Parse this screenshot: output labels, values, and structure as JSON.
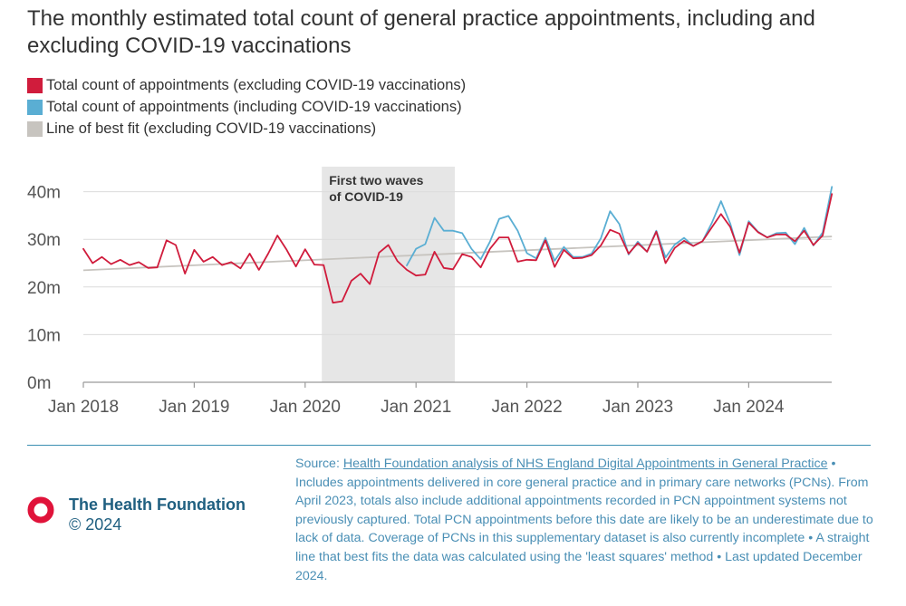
{
  "title": "The monthly estimated total count of general practice appointments, including and excluding COVID-19 vaccinations",
  "legend": [
    {
      "label": "Total count of appointments (excluding COVID-19 vaccinations)",
      "color": "#d01c3c"
    },
    {
      "label": "Total count of appointments (including COVID-19 vaccinations)",
      "color": "#5aaed3"
    },
    {
      "label": "Line of best fit (excluding COVID-19 vaccinations)",
      "color": "#c7c4bf"
    }
  ],
  "chart_data": {
    "type": "line",
    "title": "The monthly estimated total count of general practice appointments, including and excluding COVID-19 vaccinations",
    "xlabel": "",
    "ylabel": "",
    "x_start": "2018-01",
    "x_tick_labels": [
      "Jan 2018",
      "Jan 2019",
      "Jan 2020",
      "Jan 2021",
      "Jan 2022",
      "Jan 2023",
      "Jan 2024"
    ],
    "y_tick_values": [
      0,
      10,
      20,
      30,
      40
    ],
    "y_tick_labels": [
      "0m",
      "10m",
      "20m",
      "30m",
      "40m"
    ],
    "ylim": [
      0,
      42
    ],
    "annotation": {
      "label_line1": "First two waves",
      "label_line2": "of COVID-19",
      "start_month_index": 26,
      "end_month_index": 40,
      "color": "#e6e6e6"
    },
    "series": [
      {
        "name": "Total count of appointments (excluding COVID-19 vaccinations)",
        "color": "#d01c3c",
        "start_index": 0,
        "values": [
          28.0,
          25.0,
          26.3,
          24.8,
          25.7,
          24.6,
          25.2,
          24.0,
          24.1,
          29.8,
          28.8,
          22.8,
          27.8,
          25.3,
          26.3,
          24.6,
          25.2,
          23.9,
          27.0,
          23.6,
          27.0,
          30.8,
          27.8,
          24.3,
          27.9,
          24.7,
          24.6,
          16.7,
          17.0,
          21.3,
          22.8,
          20.6,
          27.2,
          28.8,
          25.4,
          23.6,
          22.4,
          22.6,
          27.4,
          24.0,
          23.7,
          26.9,
          26.3,
          24.1,
          28.0,
          30.4,
          30.4,
          25.3,
          25.7,
          25.6,
          29.8,
          24.2,
          27.8,
          26.0,
          26.1,
          26.7,
          28.7,
          32.0,
          31.2,
          27.0,
          29.2,
          27.4,
          31.6,
          25.0,
          28.2,
          29.7,
          28.6,
          29.6,
          32.5,
          35.3,
          32.6,
          27.2,
          33.5,
          31.5,
          30.4,
          31.0,
          31.0,
          29.6,
          31.8,
          28.8,
          30.8,
          39.5
        ]
      },
      {
        "name": "Total count of appointments (including COVID-19 vaccinations)",
        "color": "#5aaed3",
        "start_index": 35,
        "values": [
          24.5,
          28.0,
          29.0,
          34.5,
          31.8,
          31.8,
          31.3,
          28.0,
          25.8,
          29.5,
          34.3,
          34.9,
          31.8,
          27.1,
          26.0,
          30.3,
          25.5,
          28.4,
          26.3,
          26.3,
          27.0,
          30.2,
          35.9,
          33.2,
          26.8,
          29.5,
          27.4,
          31.8,
          26.2,
          28.9,
          30.3,
          28.6,
          29.6,
          33.4,
          38.0,
          33.3,
          26.7,
          33.8,
          31.6,
          30.4,
          31.3,
          31.4,
          29.0,
          32.4,
          28.7,
          31.4,
          41.0
        ]
      },
      {
        "name": "Line of best fit (excluding COVID-19 vaccinations)",
        "color": "#c7c4bf",
        "start_index": 0,
        "values": [
          23.5,
          30.6
        ],
        "end_index": 81
      }
    ]
  },
  "footer": {
    "brand_name": "The Health Foundation",
    "brand_copyright": "© 2024",
    "source_prefix": "Source: ",
    "source_link": "Health Foundation analysis of NHS England Digital Appointments in General Practice",
    "source_notes": "• Includes appointments delivered in core general practice and in primary care networks (PCNs). From April 2023, totals also include additional appointments recorded in PCN appointment systems not previously captured. Total PCN appointments before this date are likely to be an underestimate due to lack of data. Coverage of PCNs in this supplementary dataset is also currently incomplete • A straight line that best fits the data was calculated using the 'least squares' method • Last updated December 2024."
  }
}
